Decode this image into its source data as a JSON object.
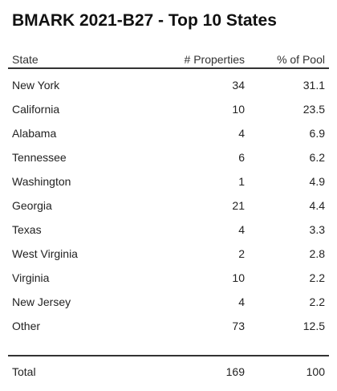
{
  "title": "BMARK 2021-B27 - Top 10 States",
  "headers": {
    "state": "State",
    "properties": "# Properties",
    "pct_pool": "% of Pool"
  },
  "rows": [
    {
      "state": "New York",
      "properties": "34",
      "pct": "31.1"
    },
    {
      "state": "California",
      "properties": "10",
      "pct": "23.5"
    },
    {
      "state": "Alabama",
      "properties": "4",
      "pct": "6.9"
    },
    {
      "state": "Tennessee",
      "properties": "6",
      "pct": "6.2"
    },
    {
      "state": "Washington",
      "properties": "1",
      "pct": "4.9"
    },
    {
      "state": "Georgia",
      "properties": "21",
      "pct": "4.4"
    },
    {
      "state": "Texas",
      "properties": "4",
      "pct": "3.3"
    },
    {
      "state": "West Virginia",
      "properties": "2",
      "pct": "2.8"
    },
    {
      "state": "Virginia",
      "properties": "10",
      "pct": "2.2"
    },
    {
      "state": "New Jersey",
      "properties": "4",
      "pct": "2.2"
    },
    {
      "state": "Other",
      "properties": "73",
      "pct": "12.5"
    }
  ],
  "total": {
    "label": "Total",
    "properties": "169",
    "pct": "100"
  }
}
